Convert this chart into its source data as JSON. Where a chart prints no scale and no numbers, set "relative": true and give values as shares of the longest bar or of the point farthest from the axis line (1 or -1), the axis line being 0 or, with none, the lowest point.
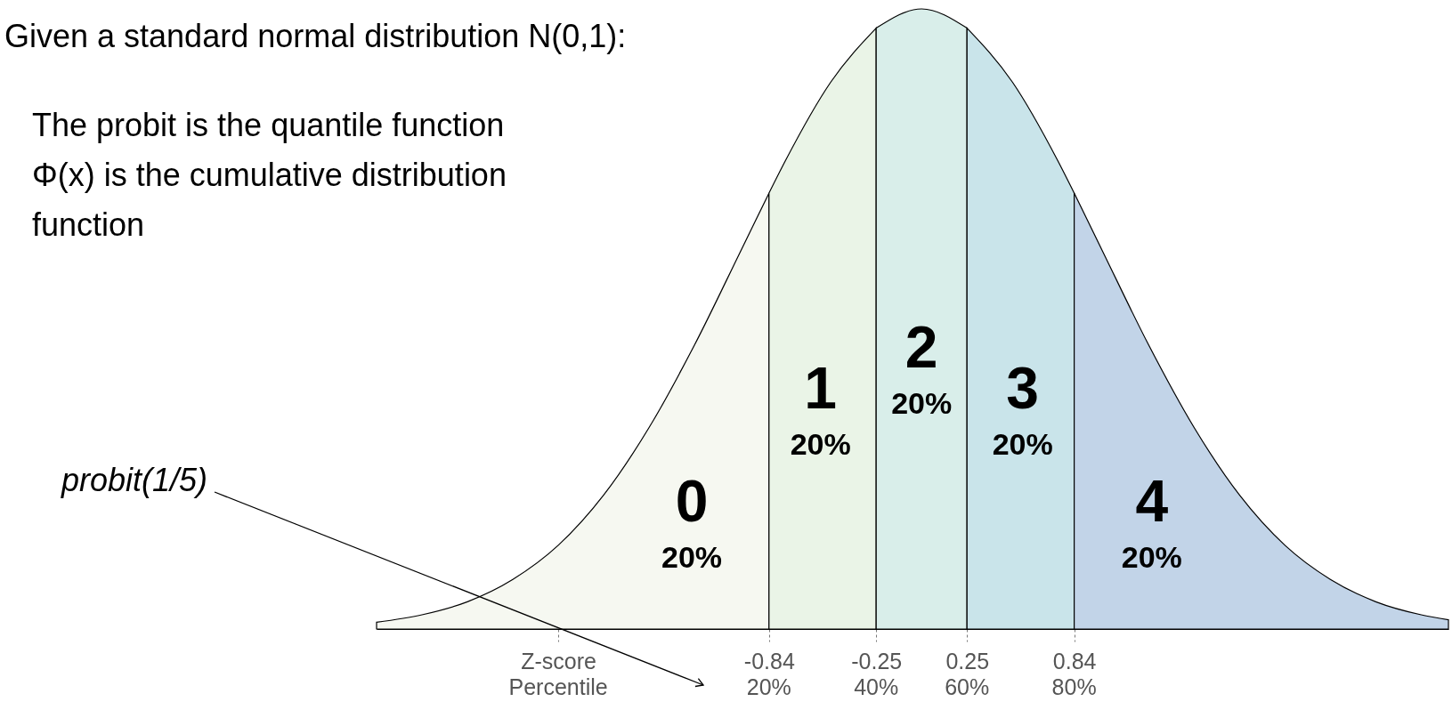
{
  "chart_data": {
    "type": "area",
    "relative": true,
    "xlim": [
      -3,
      2.9
    ],
    "xticks": [
      {
        "value": -2,
        "label": "Z-score"
      },
      -0.84,
      -0.25,
      0.25,
      0.84
    ],
    "series": [
      {
        "name": "0",
        "color": "#f6f8f1",
        "x": [
          -3,
          -2.75,
          -2.5,
          -2.25,
          -2,
          -1.75,
          -1.5,
          -1.25,
          -1,
          -0.84
        ],
        "values": [
          0.011,
          0.023,
          0.044,
          0.08,
          0.135,
          0.216,
          0.325,
          0.458,
          0.607,
          0.703
        ]
      },
      {
        "name": "1",
        "color": "#eaf4e7",
        "x": [
          -0.84,
          -0.75,
          -0.5,
          -0.25
        ],
        "values": [
          0.703,
          0.755,
          0.882,
          0.969
        ]
      },
      {
        "name": "2",
        "color": "#d9eeea",
        "x": [
          -0.25,
          0,
          0.25
        ],
        "values": [
          0.969,
          1,
          0.969
        ]
      },
      {
        "name": "3",
        "color": "#c9e4ea",
        "x": [
          0.25,
          0.5,
          0.75,
          0.84
        ],
        "values": [
          0.969,
          0.882,
          0.755,
          0.703
        ]
      },
      {
        "name": "4",
        "color": "#c2d4e8",
        "x": [
          0.84,
          1,
          1.25,
          1.5,
          1.75,
          2,
          2.25,
          2.5,
          2.75,
          2.9
        ],
        "values": [
          0.703,
          0.607,
          0.458,
          0.325,
          0.216,
          0.135,
          0.08,
          0.044,
          0.023,
          0.015
        ]
      }
    ],
    "annotations": [
      "20%",
      "20%",
      "20%",
      "20%",
      "20%",
      "Given a standard normal distribution N(0,1):",
      "The probit is the quantile function",
      "Φ(x) is the cumulative distribution function",
      "probit(1/5)",
      "Percentile",
      "20%",
      "40%",
      "60%",
      "80%"
    ],
    "grid": false
  }
}
